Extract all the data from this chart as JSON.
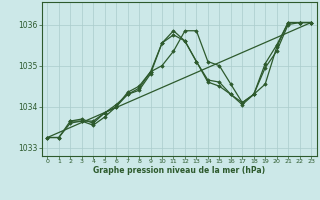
{
  "title": "Graphe pression niveau de la mer (hPa)",
  "background_color": "#cce8e8",
  "grid_color": "#aacccc",
  "line_color": "#2d5a2d",
  "marker_color": "#2d5a2d",
  "ylim": [
    1032.8,
    1036.55
  ],
  "xlim": [
    -0.5,
    23.5
  ],
  "yticks": [
    1033,
    1034,
    1035,
    1036
  ],
  "xticks": [
    0,
    1,
    2,
    3,
    4,
    5,
    6,
    7,
    8,
    9,
    10,
    11,
    12,
    13,
    14,
    15,
    16,
    17,
    18,
    19,
    20,
    21,
    22,
    23
  ],
  "series": [
    {
      "x": [
        0,
        1,
        2,
        3,
        4,
        5,
        6,
        7,
        8,
        9,
        10,
        11,
        12,
        13,
        14,
        15,
        16,
        17,
        18,
        19,
        20,
        21,
        22,
        23
      ],
      "y": [
        1033.25,
        1033.25,
        1033.6,
        1033.65,
        1033.55,
        1033.75,
        1034.0,
        1034.3,
        1034.4,
        1034.8,
        1035.55,
        1035.85,
        1035.6,
        1035.1,
        1034.65,
        1034.6,
        1034.3,
        1034.1,
        1034.3,
        1034.55,
        1035.45,
        1036.05,
        1036.05,
        1036.05
      ]
    },
    {
      "x": [
        0,
        1,
        2,
        3,
        4,
        5,
        6,
        7,
        8,
        9,
        10,
        11,
        12,
        13,
        14,
        15,
        16,
        17,
        18,
        19,
        20,
        21,
        22,
        23
      ],
      "y": [
        1033.25,
        1033.25,
        1033.65,
        1033.65,
        1033.65,
        1033.85,
        1034.05,
        1034.3,
        1034.45,
        1034.85,
        1035.0,
        1035.35,
        1035.85,
        1035.85,
        1035.1,
        1035.0,
        1034.55,
        1034.1,
        1034.3,
        1035.05,
        1035.5,
        1036.05,
        1036.05,
        1036.05
      ]
    },
    {
      "x": [
        2,
        3,
        4,
        5,
        6,
        7,
        8,
        9,
        10,
        11,
        12,
        13,
        14,
        15,
        16,
        17,
        18,
        19,
        20,
        21,
        22,
        23
      ],
      "y": [
        1033.65,
        1033.7,
        1033.6,
        1033.85,
        1034.0,
        1034.35,
        1034.5,
        1034.85,
        1035.55,
        1035.75,
        1035.6,
        1035.1,
        1034.6,
        1034.5,
        1034.3,
        1034.05,
        1034.3,
        1034.95,
        1035.35,
        1036.0,
        1036.05,
        1036.05
      ]
    },
    {
      "x": [
        0,
        23
      ],
      "y": [
        1033.25,
        1036.05
      ]
    }
  ]
}
